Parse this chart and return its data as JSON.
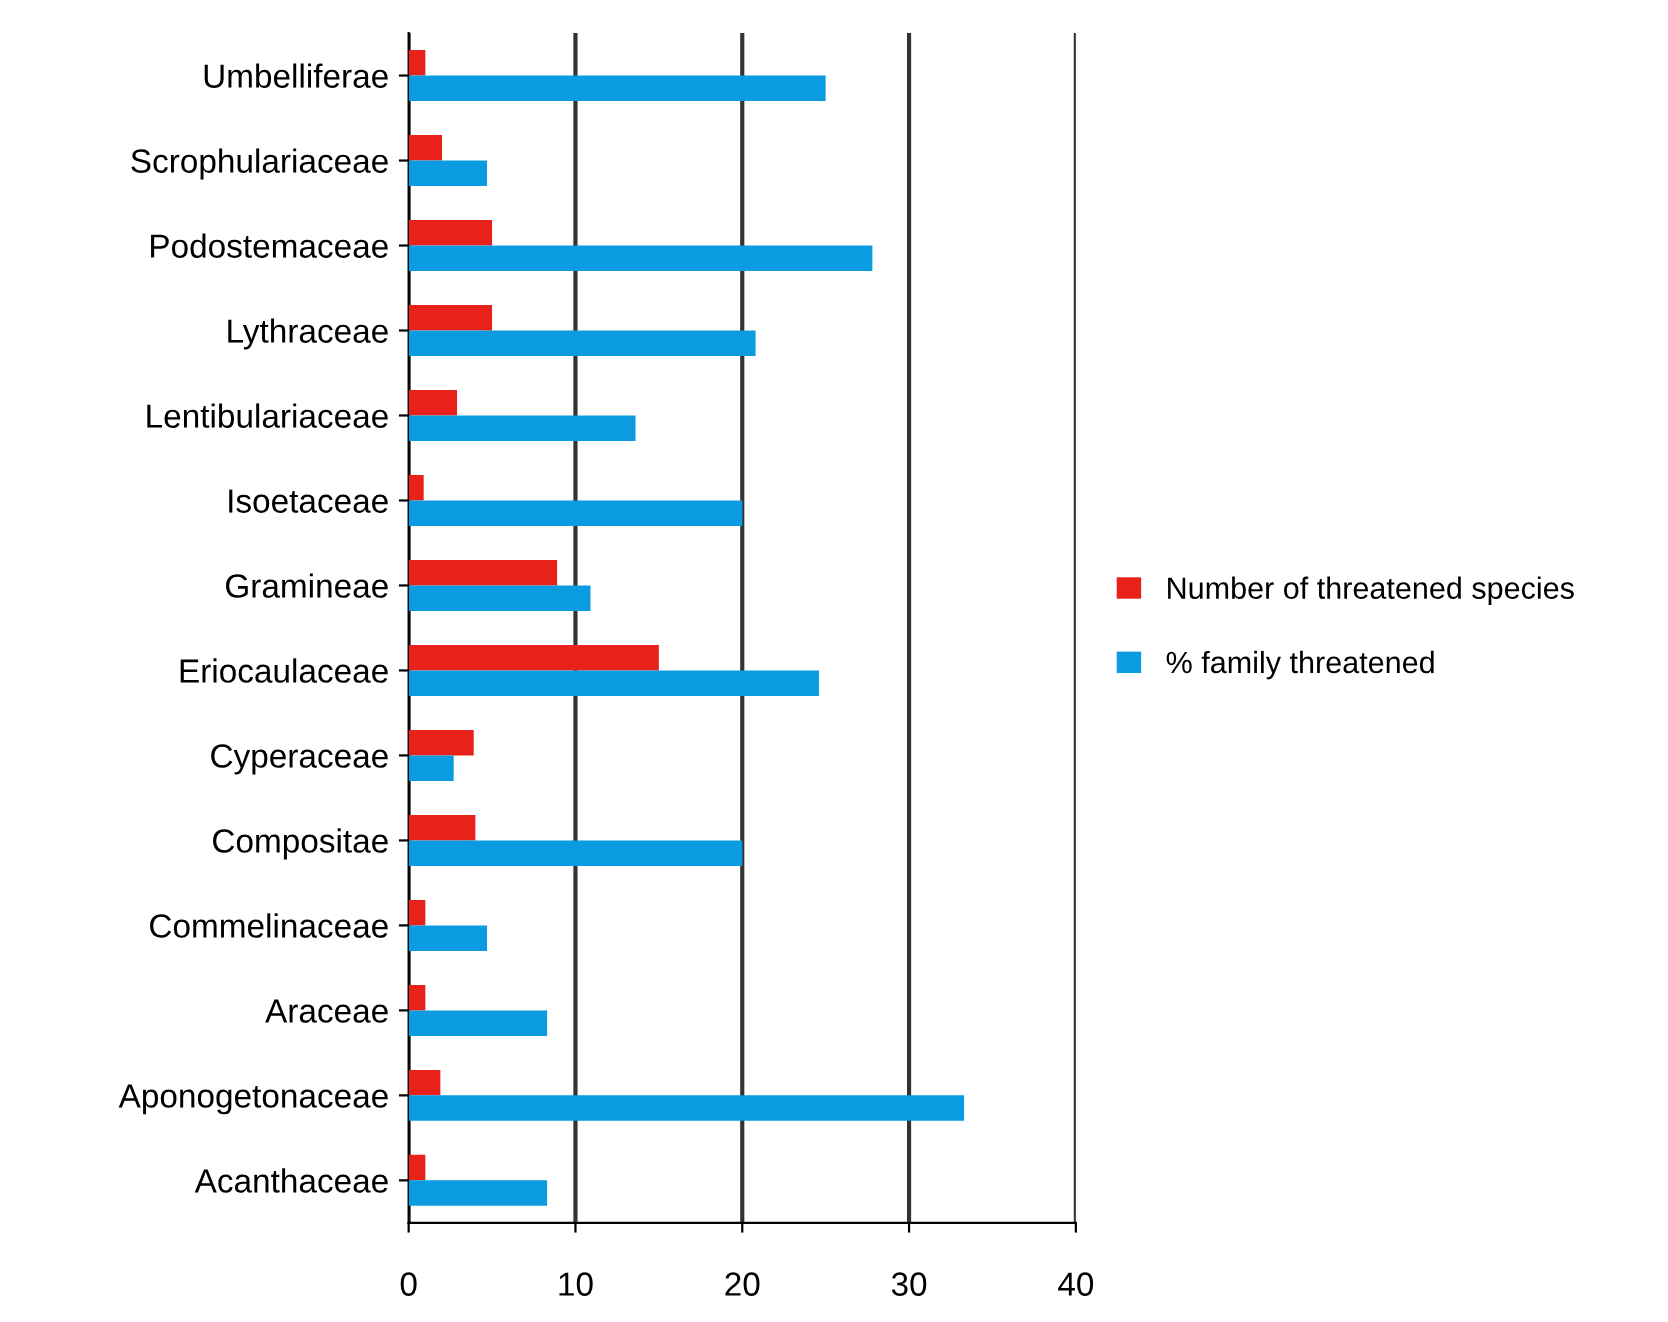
{
  "chart_data": {
    "type": "bar",
    "orientation": "horizontal",
    "categories": [
      "Umbelliferae",
      "Scrophulariaceae",
      "Podostemaceae",
      "Lythraceae",
      "Lentibulariaceae",
      "Isoetaceae",
      "Gramineae",
      "Eriocaulaceae",
      "Cyperaceae",
      "Compositae",
      "Commelinaceae",
      "Araceae",
      "Aponogetonaceae",
      "Acanthaceae"
    ],
    "series": [
      {
        "name": "Number of threatened species",
        "color": "#e8221b",
        "values": [
          1,
          2,
          5,
          5,
          2.9,
          0.9,
          8.9,
          15,
          3.9,
          4,
          1,
          1,
          1.9,
          1
        ]
      },
      {
        "name": "% family threatened",
        "color": "#0a9be0",
        "values": [
          25,
          4.7,
          27.8,
          20.8,
          13.6,
          20,
          10.9,
          24.6,
          2.7,
          20,
          4.7,
          8.3,
          33.3,
          8.3
        ]
      }
    ],
    "xlim": [
      0,
      40
    ],
    "xticks": [
      0,
      10,
      20,
      30,
      40
    ],
    "grid": "x",
    "legend": "right"
  }
}
